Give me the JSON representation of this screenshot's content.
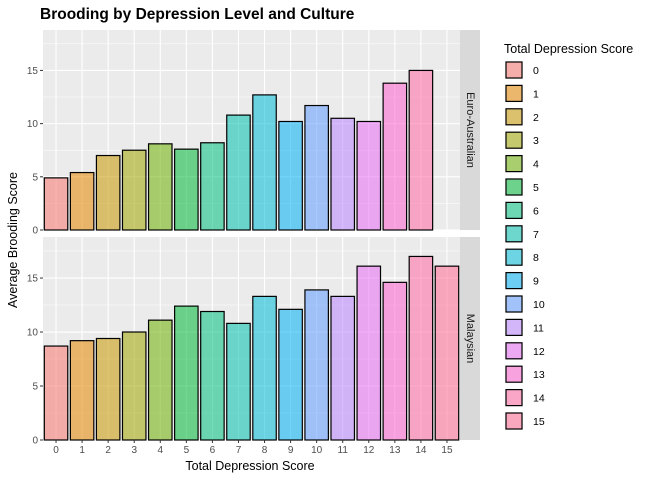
{
  "chart_data": {
    "type": "bar",
    "title": "Brooding by Depression Level and Culture",
    "xlabel": "Total Depression Score",
    "ylabel": "Average Brooding Score",
    "categories": [
      "0",
      "1",
      "2",
      "3",
      "4",
      "5",
      "6",
      "7",
      "8",
      "9",
      "10",
      "11",
      "12",
      "13",
      "14",
      "15"
    ],
    "ylim": [
      0,
      18.8
    ],
    "yticks": [
      0,
      5,
      10,
      15
    ],
    "grid": true,
    "legend": {
      "title": "Total Depression Score",
      "placement": "right",
      "labels": [
        "0",
        "1",
        "2",
        "3",
        "4",
        "5",
        "6",
        "7",
        "8",
        "9",
        "10",
        "11",
        "12",
        "13",
        "14",
        "15"
      ]
    },
    "colors": [
      "#f8766d",
      "#e58700",
      "#c99800",
      "#a3a500",
      "#6bb100",
      "#00ba38",
      "#00bf7d",
      "#00c0af",
      "#00bcd8",
      "#00b0f6",
      "#619cff",
      "#b983ff",
      "#e76bf3",
      "#fd61d1",
      "#ff67a4",
      "#ff6c91"
    ],
    "facets": [
      {
        "name": "Euro-Australian",
        "values": [
          4.9,
          5.4,
          7.0,
          7.5,
          8.1,
          7.6,
          8.2,
          10.8,
          12.7,
          10.2,
          11.7,
          10.5,
          10.2,
          13.8,
          15.0,
          null
        ]
      },
      {
        "name": "Malaysian",
        "values": [
          8.7,
          9.2,
          9.4,
          10.0,
          11.1,
          12.4,
          11.9,
          10.8,
          13.3,
          12.1,
          13.9,
          13.3,
          16.1,
          14.6,
          17.0,
          16.1
        ]
      }
    ]
  }
}
